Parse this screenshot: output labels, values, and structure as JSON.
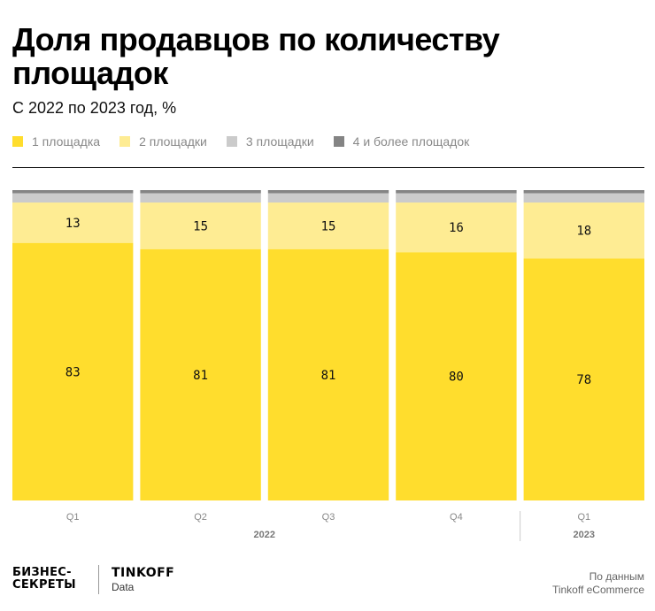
{
  "header": {
    "title": "Доля продавцов по количеству площадок",
    "subtitle": "С 2022 по 2023 год, %"
  },
  "colors": {
    "one": "#FFDD2D",
    "two": "#FEEC93",
    "three": "#CBCBCB",
    "four_plus": "#848484"
  },
  "chart_data": {
    "type": "bar",
    "stacked": true,
    "orientation": "vertical",
    "title": "Доля продавцов по количеству площадок",
    "subtitle": "С 2022 по 2023 год, %",
    "xlabel": "",
    "ylabel": "",
    "ylim": [
      0,
      100
    ],
    "grid": false,
    "legend_position": "top-left",
    "categories": [
      "Q1",
      "Q2",
      "Q3",
      "Q4",
      "Q1"
    ],
    "category_groups": [
      {
        "label": "2022",
        "categories": [
          0,
          1,
          2,
          3
        ]
      },
      {
        "label": "2023",
        "categories": [
          4
        ]
      }
    ],
    "series": [
      {
        "name": "1 площадка",
        "color_key": "one",
        "values": [
          83,
          81,
          81,
          80,
          78
        ],
        "labeled": true
      },
      {
        "name": "2 площадки",
        "color_key": "two",
        "values": [
          13,
          15,
          15,
          16,
          18
        ],
        "labeled": true
      },
      {
        "name": "3 площадки",
        "color_key": "three",
        "values": [
          3,
          3,
          3,
          3,
          3
        ],
        "labeled": false
      },
      {
        "name": "4 и более площадок",
        "color_key": "four_plus",
        "values": [
          1,
          1,
          1,
          1,
          1
        ],
        "labeled": false
      }
    ]
  },
  "footer": {
    "logo_line1": "БИЗНЕС-",
    "logo_line2": "СЕКРЕТЫ",
    "partner_name": "TINKOFF",
    "partner_sub": "Data",
    "source_line1": "По данным",
    "source_line2": "Tinkoff eCommerce"
  }
}
